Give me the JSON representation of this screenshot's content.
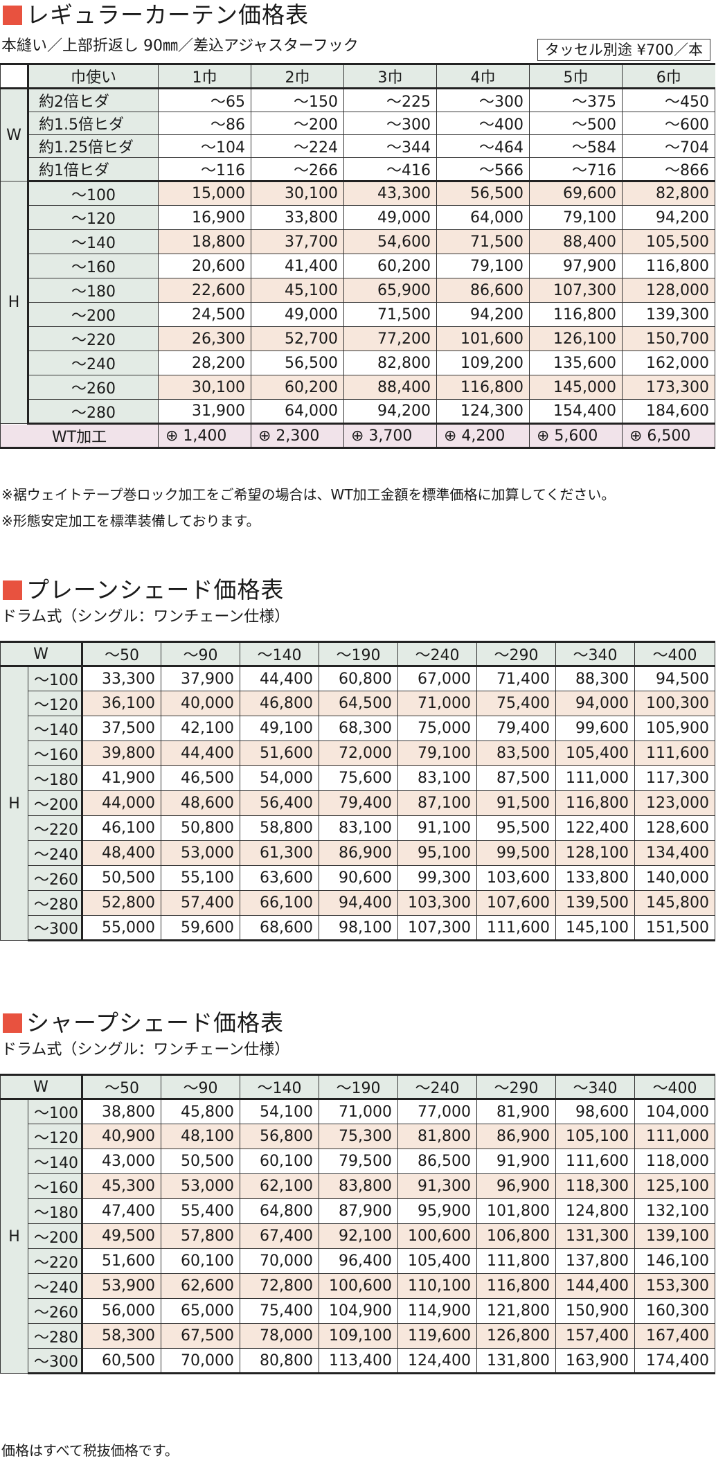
{
  "curtain": {
    "title": "レギュラーカーテン価格表",
    "subtitle": "本縫い／上部折返し 90㎜／差込アジャスターフック",
    "tassel": "タッセル別途 ¥700／本",
    "corner": "巾使い",
    "columns": [
      "1巾",
      "2巾",
      "3巾",
      "4巾",
      "5巾",
      "6巾"
    ],
    "w_label": "W",
    "w_rows": [
      {
        "label": "約2倍ヒダ",
        "values": [
          "～65",
          "～150",
          "～225",
          "～300",
          "～375",
          "～450"
        ]
      },
      {
        "label": "約1.5倍ヒダ",
        "values": [
          "～86",
          "～200",
          "～300",
          "～400",
          "～500",
          "～600"
        ]
      },
      {
        "label": "約1.25倍ヒダ",
        "values": [
          "～104",
          "～224",
          "～344",
          "～464",
          "～584",
          "～704"
        ]
      },
      {
        "label": "約1倍ヒダ",
        "values": [
          "～116",
          "～266",
          "～416",
          "～566",
          "～716",
          "～866"
        ]
      }
    ],
    "h_label": "H",
    "h_rows": [
      {
        "label": "～100",
        "values": [
          "15,000",
          "30,100",
          "43,300",
          "56,500",
          "69,600",
          "82,800"
        ]
      },
      {
        "label": "～120",
        "values": [
          "16,900",
          "33,800",
          "49,000",
          "64,000",
          "79,100",
          "94,200"
        ]
      },
      {
        "label": "～140",
        "values": [
          "18,800",
          "37,700",
          "54,600",
          "71,500",
          "88,400",
          "105,500"
        ]
      },
      {
        "label": "～160",
        "values": [
          "20,600",
          "41,400",
          "60,200",
          "79,100",
          "97,900",
          "116,800"
        ]
      },
      {
        "label": "～180",
        "values": [
          "22,600",
          "45,100",
          "65,900",
          "86,600",
          "107,300",
          "128,000"
        ]
      },
      {
        "label": "～200",
        "values": [
          "24,500",
          "49,000",
          "71,500",
          "94,200",
          "116,800",
          "139,300"
        ]
      },
      {
        "label": "～220",
        "values": [
          "26,300",
          "52,700",
          "77,200",
          "101,600",
          "126,100",
          "150,700"
        ]
      },
      {
        "label": "～240",
        "values": [
          "28,200",
          "56,500",
          "82,800",
          "109,200",
          "135,600",
          "162,000"
        ]
      },
      {
        "label": "～260",
        "values": [
          "30,100",
          "60,200",
          "88,400",
          "116,800",
          "145,000",
          "173,300"
        ]
      },
      {
        "label": "～280",
        "values": [
          "31,900",
          "64,000",
          "94,200",
          "124,300",
          "154,400",
          "184,600"
        ]
      }
    ],
    "wt_label": "WT加工",
    "wt_values": [
      "⊕ 1,400",
      "⊕ 2,300",
      "⊕ 3,700",
      "⊕ 4,200",
      "⊕ 5,600",
      "⊕ 6,500"
    ],
    "notes": [
      "※裾ウェイトテープ巻ロック加工をご希望の場合は、WT加工金額を標準価格に加算してください。",
      "※形態安定加工を標準装備しております。"
    ]
  },
  "plain_shade": {
    "title": "プレーンシェード価格表",
    "subtitle": "ドラム式（シングル：ワンチェーン仕様）",
    "w_label": "W",
    "h_label": "H",
    "columns": [
      "～50",
      "～90",
      "～140",
      "～190",
      "～240",
      "～290",
      "～340",
      "～400"
    ],
    "rows": [
      {
        "label": "～100",
        "values": [
          "33,300",
          "37,900",
          "44,400",
          "60,800",
          "67,000",
          "71,400",
          "88,300",
          "94,500"
        ]
      },
      {
        "label": "～120",
        "values": [
          "36,100",
          "40,000",
          "46,800",
          "64,500",
          "71,000",
          "75,400",
          "94,000",
          "100,300"
        ]
      },
      {
        "label": "～140",
        "values": [
          "37,500",
          "42,100",
          "49,100",
          "68,300",
          "75,000",
          "79,400",
          "99,600",
          "105,900"
        ]
      },
      {
        "label": "～160",
        "values": [
          "39,800",
          "44,400",
          "51,600",
          "72,000",
          "79,100",
          "83,500",
          "105,400",
          "111,600"
        ]
      },
      {
        "label": "～180",
        "values": [
          "41,900",
          "46,500",
          "54,000",
          "75,600",
          "83,100",
          "87,500",
          "111,000",
          "117,300"
        ]
      },
      {
        "label": "～200",
        "values": [
          "44,000",
          "48,600",
          "56,400",
          "79,400",
          "87,100",
          "91,500",
          "116,800",
          "123,000"
        ]
      },
      {
        "label": "～220",
        "values": [
          "46,100",
          "50,800",
          "58,800",
          "83,100",
          "91,100",
          "95,500",
          "122,400",
          "128,600"
        ]
      },
      {
        "label": "～240",
        "values": [
          "48,400",
          "53,000",
          "61,300",
          "86,900",
          "95,100",
          "99,500",
          "128,100",
          "134,400"
        ]
      },
      {
        "label": "～260",
        "values": [
          "50,500",
          "55,100",
          "63,600",
          "90,600",
          "99,300",
          "103,600",
          "133,800",
          "140,000"
        ]
      },
      {
        "label": "～280",
        "values": [
          "52,800",
          "57,400",
          "66,100",
          "94,400",
          "103,300",
          "107,600",
          "139,500",
          "145,800"
        ]
      },
      {
        "label": "～300",
        "values": [
          "55,000",
          "59,600",
          "68,600",
          "98,100",
          "107,300",
          "111,600",
          "145,100",
          "151,500"
        ]
      }
    ]
  },
  "sharp_shade": {
    "title": "シャープシェード価格表",
    "subtitle": "ドラム式（シングル：ワンチェーン仕様）",
    "w_label": "W",
    "h_label": "H",
    "columns": [
      "～50",
      "～90",
      "～140",
      "～190",
      "～240",
      "～290",
      "～340",
      "～400"
    ],
    "rows": [
      {
        "label": "～100",
        "values": [
          "38,800",
          "45,800",
          "54,100",
          "71,000",
          "77,000",
          "81,900",
          "98,600",
          "104,000"
        ]
      },
      {
        "label": "～120",
        "values": [
          "40,900",
          "48,100",
          "56,800",
          "75,300",
          "81,800",
          "86,900",
          "105,100",
          "111,000"
        ]
      },
      {
        "label": "～140",
        "values": [
          "43,000",
          "50,500",
          "60,100",
          "79,500",
          "86,500",
          "91,900",
          "111,600",
          "118,000"
        ]
      },
      {
        "label": "～160",
        "values": [
          "45,300",
          "53,000",
          "62,100",
          "83,800",
          "91,300",
          "96,900",
          "118,300",
          "125,100"
        ]
      },
      {
        "label": "～180",
        "values": [
          "47,400",
          "55,400",
          "64,800",
          "87,900",
          "95,900",
          "101,800",
          "124,800",
          "132,100"
        ]
      },
      {
        "label": "～200",
        "values": [
          "49,500",
          "57,800",
          "67,400",
          "92,100",
          "100,600",
          "106,800",
          "131,300",
          "139,100"
        ]
      },
      {
        "label": "～220",
        "values": [
          "51,600",
          "60,100",
          "70,000",
          "96,400",
          "105,400",
          "111,800",
          "137,800",
          "146,100"
        ]
      },
      {
        "label": "～240",
        "values": [
          "53,900",
          "62,600",
          "72,800",
          "100,600",
          "110,100",
          "116,800",
          "144,400",
          "153,300"
        ]
      },
      {
        "label": "～260",
        "values": [
          "56,000",
          "65,000",
          "75,400",
          "104,900",
          "114,900",
          "121,800",
          "150,900",
          "160,300"
        ]
      },
      {
        "label": "～280",
        "values": [
          "58,300",
          "67,500",
          "78,000",
          "109,100",
          "119,600",
          "126,800",
          "157,400",
          "167,400"
        ]
      },
      {
        "label": "～300",
        "values": [
          "60,500",
          "70,000",
          "80,800",
          "113,400",
          "124,400",
          "131,800",
          "163,900",
          "174,400"
        ]
      }
    ]
  },
  "footer": "価格はすべて税抜価格です。"
}
